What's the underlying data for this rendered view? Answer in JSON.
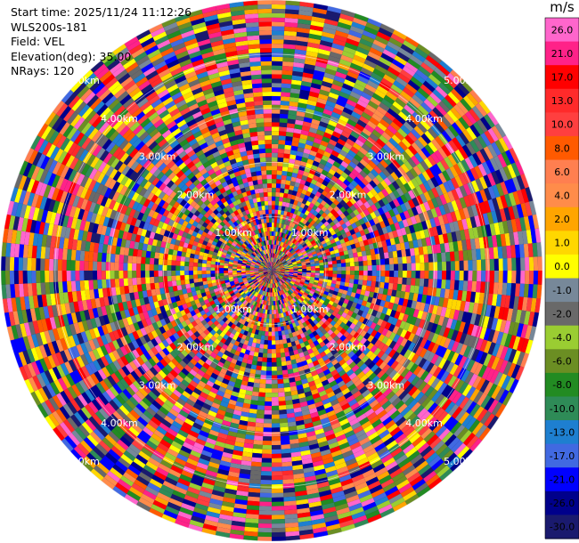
{
  "info": {
    "start_time": "Start time: 2025/11/24 11:12:26",
    "instrument": "WLS200s-181",
    "field": "Field: VEL",
    "elevation": "Elevation(deg): 35.00",
    "nrays": "NRays: 120"
  },
  "chart_data": {
    "type": "heatmap",
    "projection": "polar-ppi",
    "field": "VEL",
    "elevation_deg": 35.0,
    "n_rays": 120,
    "max_range_km": 5.0,
    "range_ring_labels": [
      "1.00km",
      "2.00km",
      "3.00km",
      "4.00km",
      "5.00km"
    ],
    "range_ring_km": [
      1,
      2,
      3,
      4,
      5
    ],
    "ring_label_azimuths_deg": [
      45,
      135,
      225,
      315
    ],
    "colorbar": {
      "unit": "m/s",
      "ticks": [
        "26.0",
        "21.0",
        "17.0",
        "13.0",
        "10.0",
        "8.0",
        "6.0",
        "4.0",
        "2.0",
        "1.0",
        "0.0",
        "-1.0",
        "-2.0",
        "-4.0",
        "-6.0",
        "-8.0",
        "-10.0",
        "-13.0",
        "-17.0",
        "-21.0",
        "-26.0",
        "-30.0"
      ],
      "colors": [
        "#ff66cc",
        "#ff2288",
        "#ff0000",
        "#ff2a2a",
        "#ff3f3f",
        "#ff5a00",
        "#ff7f50",
        "#ff8c4a",
        "#ffa500",
        "#ffd700",
        "#ffff00",
        "#778899",
        "#696969",
        "#9acd32",
        "#6b8e23",
        "#228b22",
        "#2e8b57",
        "#1e7fd0",
        "#4169e1",
        "#0000ff",
        "#00008b",
        "#1a1a6e"
      ]
    },
    "values_note": "noisy velocity field with no coherent structure; values span the full colorbar range"
  }
}
